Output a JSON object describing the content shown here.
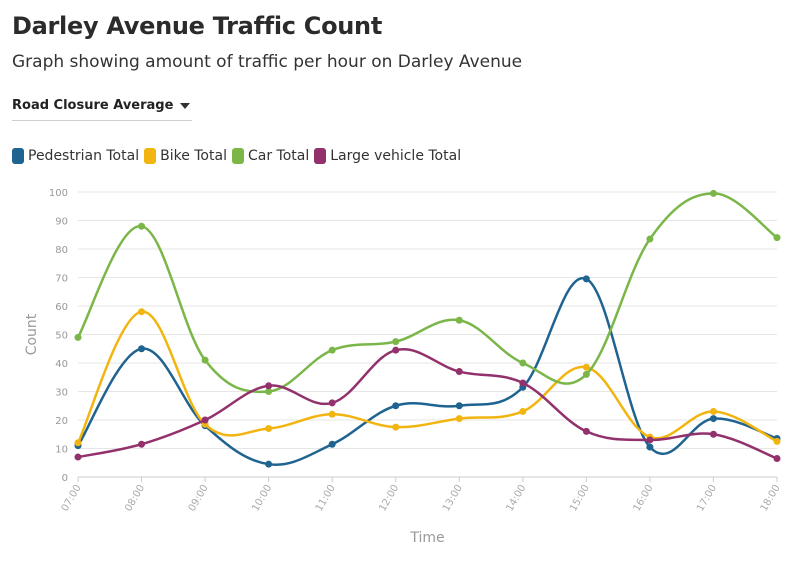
{
  "header": {
    "title": "Darley Avenue Traffic Count",
    "subtitle": "Graph showing amount of traffic per hour on Darley Avenue"
  },
  "filter": {
    "selected": "Road Closure Average",
    "icon": "chevron-down-icon"
  },
  "chart_data": {
    "type": "line",
    "xlabel": "Time",
    "ylabel": "Count",
    "ylim": [
      0,
      100
    ],
    "yticks": [
      0,
      10,
      20,
      30,
      40,
      50,
      60,
      70,
      80,
      90,
      100
    ],
    "grid": true,
    "legend_position": "top-left",
    "smooth": true,
    "x": [
      "07:00",
      "08:00",
      "09:00",
      "10:00",
      "11:00",
      "12:00",
      "13:00",
      "14:00",
      "15:00",
      "16:00",
      "17:00",
      "18:00"
    ],
    "series": [
      {
        "name": "Pedestrian Total",
        "color": "#1f6391",
        "values": [
          11,
          45,
          18,
          4.5,
          11.5,
          25,
          25,
          31.5,
          69.5,
          10.5,
          20.5,
          13.5
        ]
      },
      {
        "name": "Bike Total",
        "color": "#f2b50f",
        "values": [
          12,
          58,
          18.5,
          17,
          22,
          17.5,
          20.5,
          23,
          38.5,
          14,
          23,
          12.5
        ]
      },
      {
        "name": "Car Total",
        "color": "#7ab648",
        "values": [
          49,
          88,
          41,
          30,
          44.5,
          47.5,
          55,
          40,
          36,
          83.5,
          99.5,
          84
        ]
      },
      {
        "name": "Large vehicle Total",
        "color": "#92316c",
        "values": [
          7,
          11.5,
          20,
          32,
          26,
          44.5,
          37,
          33,
          16,
          13,
          15,
          6.5
        ]
      }
    ]
  }
}
